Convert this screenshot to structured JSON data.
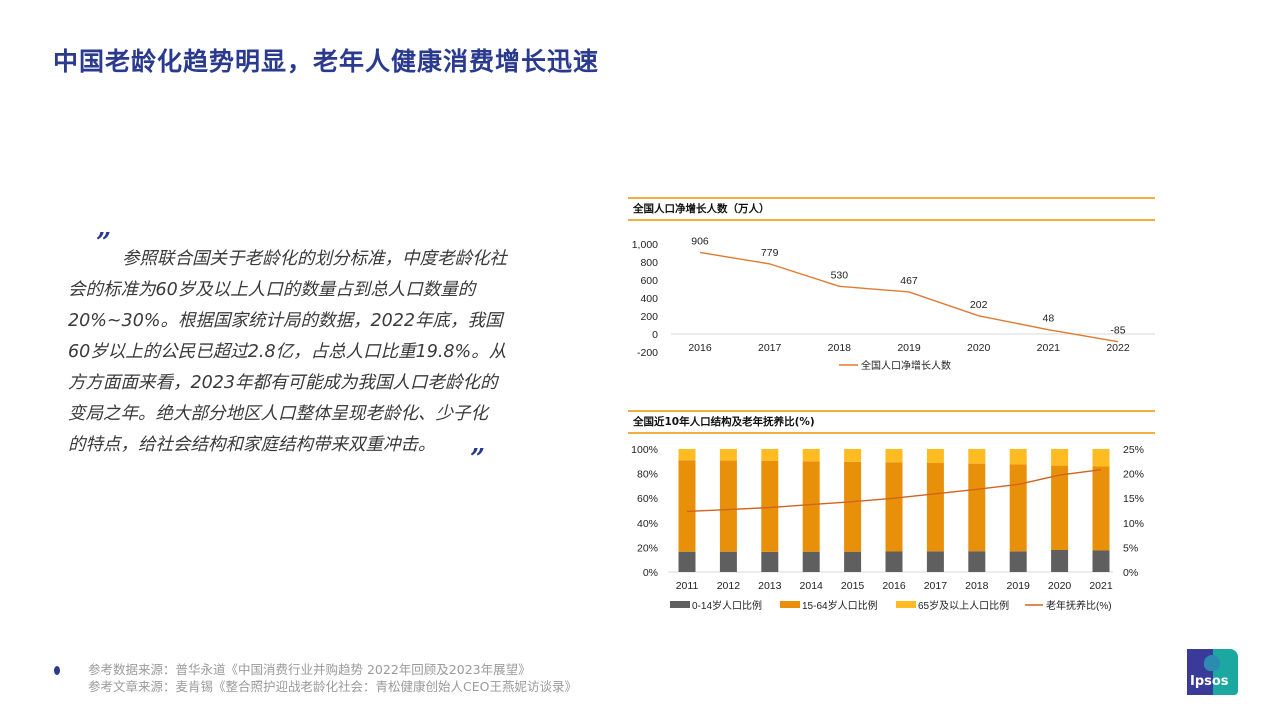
{
  "slide": {
    "title": "中国老龄化趋势明显，老年人健康消费增长迅速",
    "quote": {
      "open_mark": "”",
      "close_mark": "”",
      "lines": [
        "参照联合国关于老龄化的划分标准，中度老龄化社",
        "会的标准为60岁及以上人口的数量占到总人口数量的",
        "20%~30%。根据国家统计局的数据，2022年底，我国",
        "60岁以上的公民已超过2.8亿，占总人口比重19.8%。从",
        "方方面面来看，2023年都有可能成为我国人口老龄化的",
        "变局之年。绝大部分地区人口整体呈现老龄化、少子化",
        "的特点，给社会结构和家庭结构带来双重冲击。"
      ]
    },
    "footer": {
      "lines": [
        "参考数据来源：普华永道《中国消费行业并购趋势 2022年回顾及2023年展望》",
        "参考文章来源：麦肯锡《整合照护迎战老龄化社会：青松健康创始人CEO王燕妮访谈录》"
      ]
    },
    "logo": {
      "text": "Ipsos",
      "colors": {
        "left": "#3a3a9a",
        "right": "#1ba8a0"
      }
    },
    "colors": {
      "title": "#2a3a8f",
      "chart_rule": "#f0b040"
    }
  },
  "chart_data": [
    {
      "type": "line",
      "title": "全国人口净增长人数（万人）",
      "categories": [
        "2016",
        "2017",
        "2018",
        "2019",
        "2020",
        "2021",
        "2022"
      ],
      "series": [
        {
          "name": "全国人口净增长人数",
          "values": [
            906,
            779,
            530,
            467,
            202,
            48,
            -85
          ],
          "color": "#e07a30"
        }
      ],
      "data_labels": [
        "906",
        "779",
        "530",
        "467",
        "202",
        "48",
        "-85"
      ],
      "yticks": [
        "1,000",
        "800",
        "600",
        "400",
        "200",
        "0",
        "-200"
      ],
      "ylim": [
        -200,
        1000
      ],
      "xlabel": "",
      "ylabel": "",
      "grid": false,
      "legend_position": "bottom"
    },
    {
      "type": "bar",
      "stacked": true,
      "title": "全国近10年人口结构及老年抚养比(%)",
      "categories": [
        "2011",
        "2012",
        "2013",
        "2014",
        "2015",
        "2016",
        "2017",
        "2018",
        "2019",
        "2020",
        "2021"
      ],
      "series": [
        {
          "name": "0-14岁人口比例",
          "values": [
            16.5,
            16.5,
            16.4,
            16.5,
            16.5,
            16.7,
            16.8,
            16.9,
            16.8,
            17.9,
            17.5
          ],
          "color": "#5f5f5f",
          "axis": "left"
        },
        {
          "name": "15-64岁人口比例",
          "values": [
            74.4,
            74.1,
            73.9,
            73.4,
            73.0,
            72.5,
            71.8,
            71.2,
            70.6,
            68.6,
            68.3
          ],
          "color": "#e8900a",
          "axis": "left"
        },
        {
          "name": "65岁及以上人口比例",
          "values": [
            9.1,
            9.4,
            9.7,
            10.1,
            10.5,
            10.8,
            11.4,
            11.9,
            12.6,
            13.5,
            14.2
          ],
          "color": "#ffbb22",
          "axis": "left"
        },
        {
          "name": "老年抚养比(%)",
          "type": "line",
          "values": [
            12.3,
            12.7,
            13.1,
            13.7,
            14.3,
            15.0,
            15.9,
            16.8,
            17.8,
            19.7,
            20.8
          ],
          "color": "#d0641e",
          "axis": "right"
        }
      ],
      "yticks_left": [
        "100%",
        "80%",
        "60%",
        "40%",
        "20%",
        "0%"
      ],
      "yticks_right": [
        "25%",
        "20%",
        "15%",
        "10%",
        "5%",
        "0%"
      ],
      "ylim": [
        0,
        100
      ],
      "ylim_right": [
        0,
        25
      ],
      "xlabel": "",
      "ylabel": "",
      "grid": false,
      "legend_position": "bottom"
    }
  ]
}
